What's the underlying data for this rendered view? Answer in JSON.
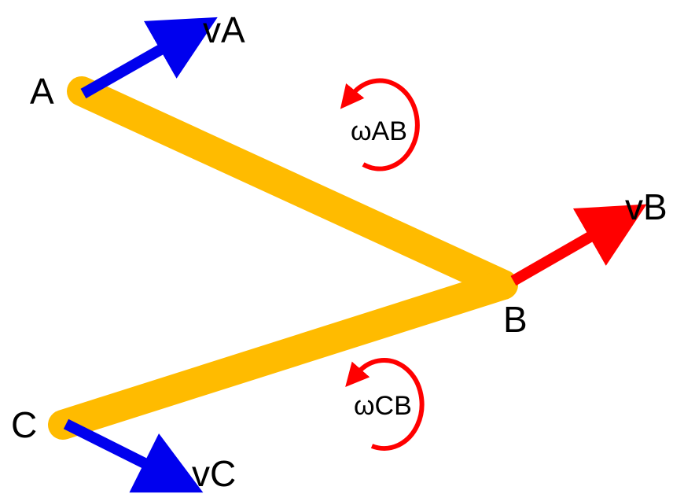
{
  "points": {
    "a": "A",
    "b": "B",
    "c": "C"
  },
  "velocities": {
    "va": "vA",
    "vb": "vB",
    "vc": "vC"
  },
  "angular": {
    "ab": "ωAB",
    "cb": "ωCB"
  },
  "colors": {
    "link": "#FFBB00",
    "velocity_a": "#0000EE",
    "velocity_b": "#FF0000",
    "velocity_c": "#0000EE",
    "omega": "#FF0000",
    "background": "#FFFFFF"
  }
}
